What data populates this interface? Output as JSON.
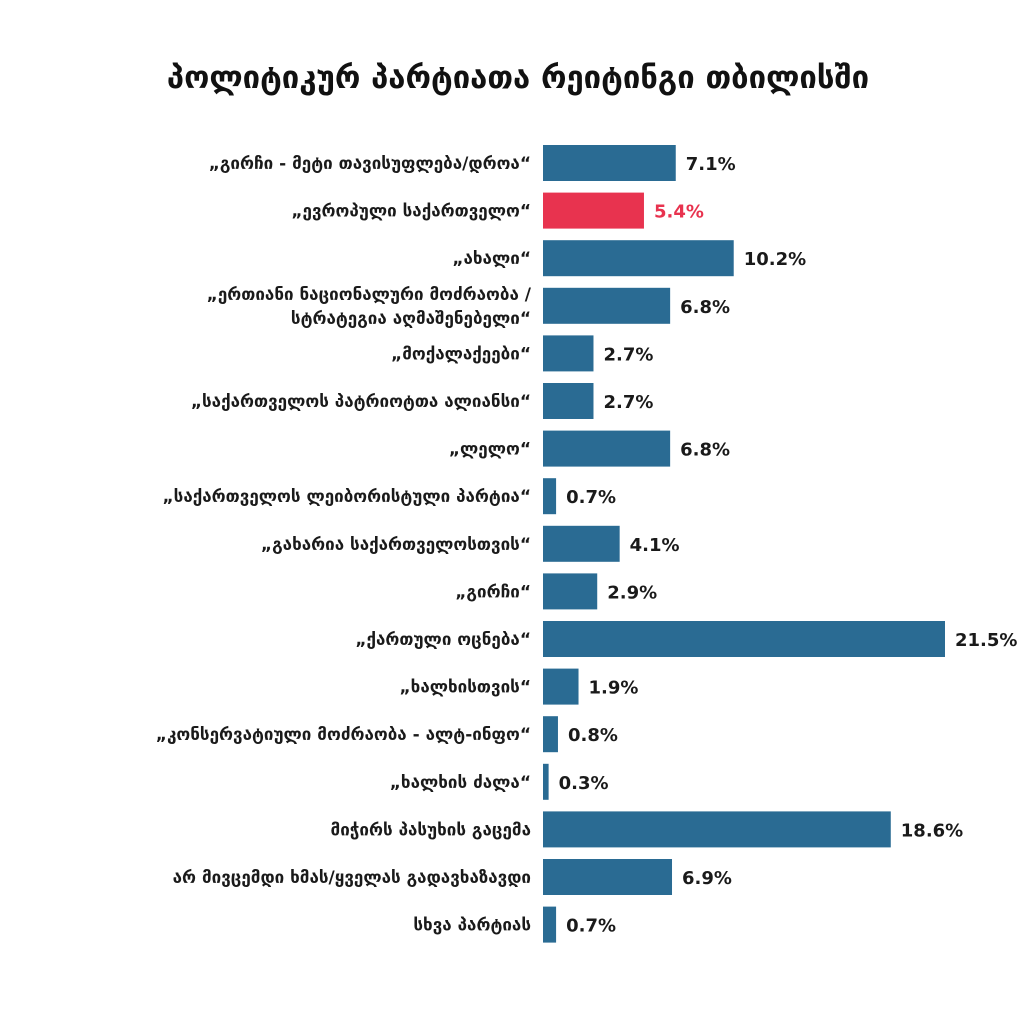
{
  "chart_data": {
    "type": "bar",
    "orientation": "horizontal",
    "title": "პოლიტიკურ პარტიათა რეიტინგი თბილისში",
    "categories": [
      [
        "„გირჩი - მეტი თავისუფლება/დროა“"
      ],
      [
        "„ევროპული საქართველო“"
      ],
      [
        "„ახალი“"
      ],
      [
        "„ერთიანი ნაციონალური მოძრაობა /",
        "სტრატეგია აღმაშენებელი“"
      ],
      [
        "„მოქალაქეები“"
      ],
      [
        "„საქართველოს პატრიოტთა ალიანსი“"
      ],
      [
        "„ლელო“"
      ],
      [
        "„საქართველოს ლეიბორისტული პარტია“"
      ],
      [
        "„გახარია საქართველოსთვის“"
      ],
      [
        "„გირჩი“"
      ],
      [
        "„ქართული ოცნება“"
      ],
      [
        "„ხალხისთვის“"
      ],
      [
        "„კონსერვატიული მოძრაობა - ალტ-ინფო“"
      ],
      [
        "„ხალხის ძალა“"
      ],
      [
        "მიჭირს პასუხის გაცემა"
      ],
      [
        "არ მივცემდი ხმას/ყველას გადავხაზავდი"
      ],
      [
        "სხვა პარტიას"
      ]
    ],
    "values": [
      7.1,
      5.4,
      10.2,
      6.8,
      2.7,
      2.7,
      6.8,
      0.7,
      4.1,
      2.9,
      21.5,
      1.9,
      0.8,
      0.3,
      18.6,
      6.9,
      0.7
    ],
    "value_labels": [
      "7.1%",
      "5.4%",
      "10.2%",
      "6.8%",
      "2.7%",
      "2.7%",
      "6.8%",
      "0.7%",
      "4.1%",
      "2.9%",
      "21.5%",
      "1.9%",
      "0.8%",
      "0.3%",
      "18.6%",
      "6.9%",
      "0.7%"
    ],
    "highlight_index": 1,
    "colors": {
      "bar": "#2a6b93",
      "highlight": "#e8334f",
      "label": "#1a1a1a"
    },
    "xlim": [
      0,
      21.5
    ],
    "grid": false,
    "legend": "none"
  }
}
